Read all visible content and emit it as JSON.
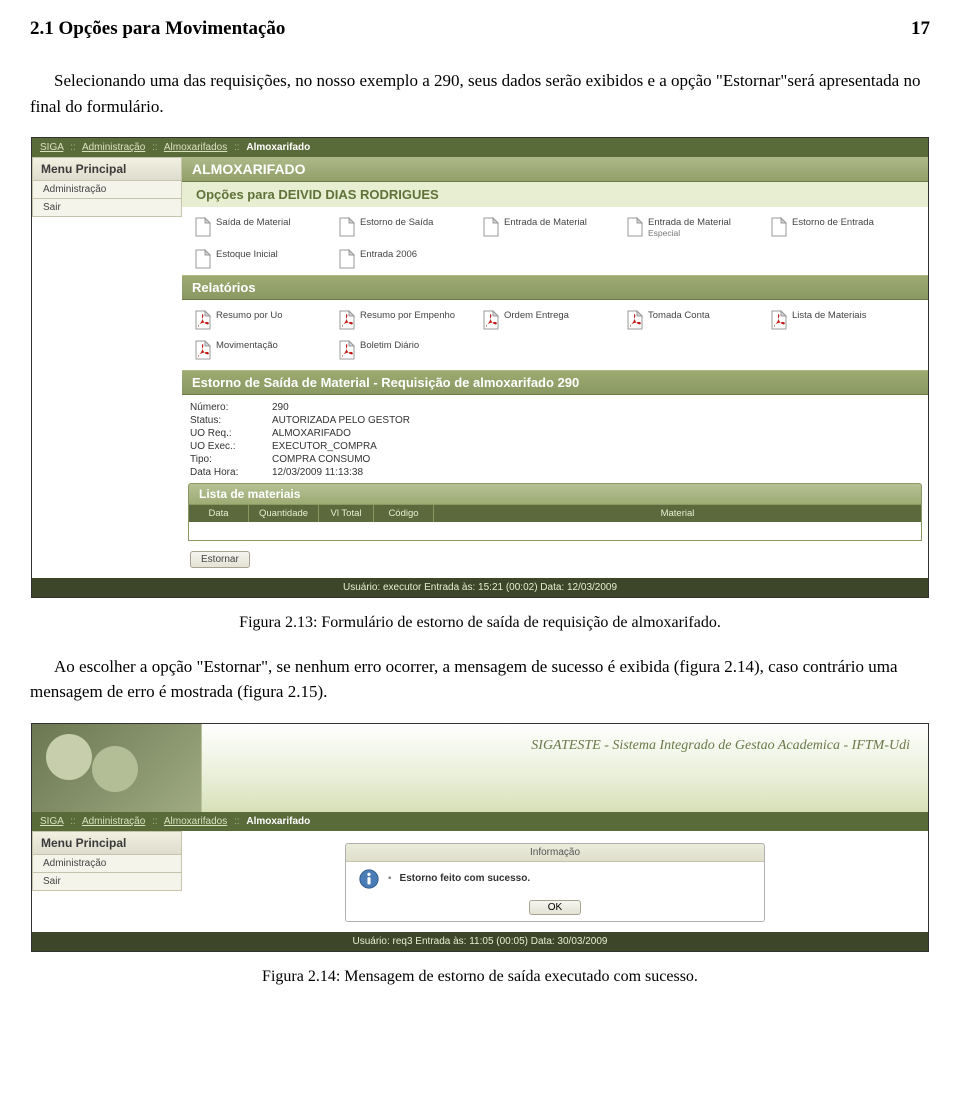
{
  "heading": "2.1 Opções para Movimentação",
  "heading_page": "17",
  "para1": "Selecionando uma das requisições, no nosso exemplo a 290, seus dados serão exibidos e a opção \"Estornar\"será apresentada no final do formulário.",
  "caption1": "Figura 2.13: Formulário de estorno de saída de requisição de almoxarifado.",
  "para2": "Ao escolher a opção \"Estornar\", se nenhum erro ocorrer, a mensagem de sucesso é exibida (figura 2.14), caso contrário uma mensagem de erro é mostrada (figura 2.15).",
  "caption2": "Figura 2.14: Mensagem de estorno de saída executado com sucesso.",
  "breadcrumb": {
    "siga": "SIGA",
    "admin": "Administração",
    "almoxarifados": "Almoxarifados",
    "current": "Almoxarifado",
    "sep": "::"
  },
  "sidebar": {
    "menu_title": "Menu Principal",
    "items": [
      "Administração",
      "Sair"
    ]
  },
  "content": {
    "section_title": "ALMOXARIFADO",
    "subtitle": "Opções para DEIVID DIAS RODRIGUES",
    "actions_row1": [
      {
        "label": "Saída de Material",
        "type": "doc"
      },
      {
        "label": "Estorno de Saída",
        "type": "doc"
      },
      {
        "label": "Entrada de Material",
        "type": "doc"
      },
      {
        "label": "Entrada de Material",
        "sub": "Especial",
        "type": "doc"
      },
      {
        "label": "Estorno de Entrada",
        "type": "doc"
      }
    ],
    "actions_row2": [
      {
        "label": "Estoque Inicial",
        "type": "doc"
      },
      {
        "label": "Entrada 2006",
        "type": "doc"
      }
    ],
    "relatorios_title": "Relatórios",
    "reports_row1": [
      {
        "label": "Resumo por Uo",
        "type": "pdf"
      },
      {
        "label": "Resumo por Empenho",
        "type": "pdf"
      },
      {
        "label": "Ordem Entrega",
        "type": "pdf"
      },
      {
        "label": "Tomada Conta",
        "type": "pdf"
      },
      {
        "label": "Lista de Materiais",
        "type": "pdf"
      }
    ],
    "reports_row2": [
      {
        "label": "Movimentação",
        "type": "pdf"
      },
      {
        "label": "Boletim Diário",
        "type": "pdf"
      }
    ],
    "estorno_title": "Estorno de Saída de Material - Requisição de almoxarifado 290",
    "details": [
      {
        "k": "Número:",
        "v": "290"
      },
      {
        "k": "Status:",
        "v": "AUTORIZADA PELO GESTOR"
      },
      {
        "k": "UO Req.:",
        "v": "ALMOXARIFADO"
      },
      {
        "k": "UO Exec.:",
        "v": "EXECUTOR_COMPRA"
      },
      {
        "k": "Tipo:",
        "v": "COMPRA CONSUMO"
      },
      {
        "k": "Data Hora:",
        "v": "12/03/2009 11:13:38"
      }
    ],
    "mat_list_title": "Lista de materiais",
    "mat_columns": [
      "Data",
      "Quantidade",
      "Vl Total",
      "Código",
      "Material"
    ],
    "estornar_label": "Estornar",
    "footer": "Usuário: executor    Entrada às: 15:21 (00:02)    Data: 12/03/2009"
  },
  "shot2": {
    "banner_title": "SIGATESTE - Sistema Integrado de Gestao Academica - IFTM-Udi",
    "breadcrumb_current": "Almoxarifado",
    "info_title": "Informação",
    "info_msg": "Estorno feito com sucesso.",
    "ok": "OK",
    "footer": "Usuário: req3    Entrada às: 11:05 (00:05)    Data: 30/03/2009"
  },
  "colors": {
    "olive_dark": "#5a6b3a",
    "olive_mid": "#929f67",
    "olive_light": "#e7eed2",
    "beige": "#e8e6d8",
    "pdf_red": "#c01818"
  }
}
